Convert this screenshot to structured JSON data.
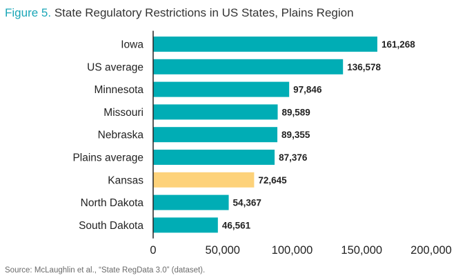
{
  "title": {
    "figure_label": "Figure 5.",
    "text": "State Regulatory Restrictions in US States, Plains Region"
  },
  "source": "Source: McLaughlin et al., “State RegData 3.0” (dataset).",
  "colors": {
    "bar": "#00adb5",
    "highlight": "#fdd27a",
    "title_accent": "#1aa6b7"
  },
  "chart_data": {
    "type": "bar",
    "orientation": "horizontal",
    "title": "State Regulatory Restrictions in US States, Plains Region",
    "categories": [
      "Iowa",
      "US average",
      "Minnesota",
      "Missouri",
      "Nebraska",
      "Plains average",
      "Kansas",
      "North Dakota",
      "South Dakota"
    ],
    "values": [
      161268,
      136578,
      97846,
      89589,
      89355,
      87376,
      72645,
      54367,
      46561
    ],
    "value_labels": [
      "161,268",
      "136,578",
      "97,846",
      "89,589",
      "89,355",
      "87,376",
      "72,645",
      "54,367",
      "46,561"
    ],
    "highlight_category": "Kansas",
    "xlim": [
      0,
      200000
    ],
    "xticks": [
      0,
      50000,
      100000,
      150000,
      200000
    ],
    "xtick_labels": [
      "0",
      "50,000",
      "100,000",
      "150,000",
      "200,000"
    ],
    "grid": false
  }
}
